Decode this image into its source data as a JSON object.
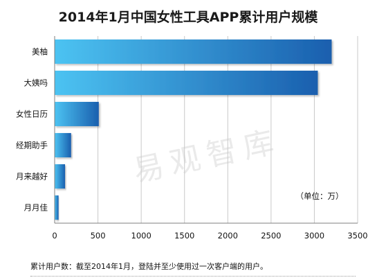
{
  "chart_data": {
    "type": "bar",
    "orientation": "horizontal",
    "title": "2014年1月中国女性工具APP累计用户规模",
    "categories": [
      "美柚",
      "大姨吗",
      "女性日历",
      "经期助手",
      "月来越好",
      "月月佳"
    ],
    "values": [
      3200,
      3040,
      510,
      190,
      120,
      45
    ],
    "xlim": [
      0,
      3500
    ],
    "xticks": [
      0,
      500,
      1000,
      1500,
      2000,
      2500,
      3000,
      3500
    ],
    "xlabel": "",
    "ylabel": "",
    "unit": "（单位：万）",
    "grid": "vertical",
    "legend": "none",
    "colors": {
      "bar_dark": "#1a5fae",
      "bar_light": "#4cc3f2",
      "grid": "#c8c8c8",
      "axis": "#7f7f7f"
    }
  },
  "watermark": "易观智库",
  "footnote": "累计用户数：截至2014年1月，登陆并至少使用过一次客户端的用户。"
}
